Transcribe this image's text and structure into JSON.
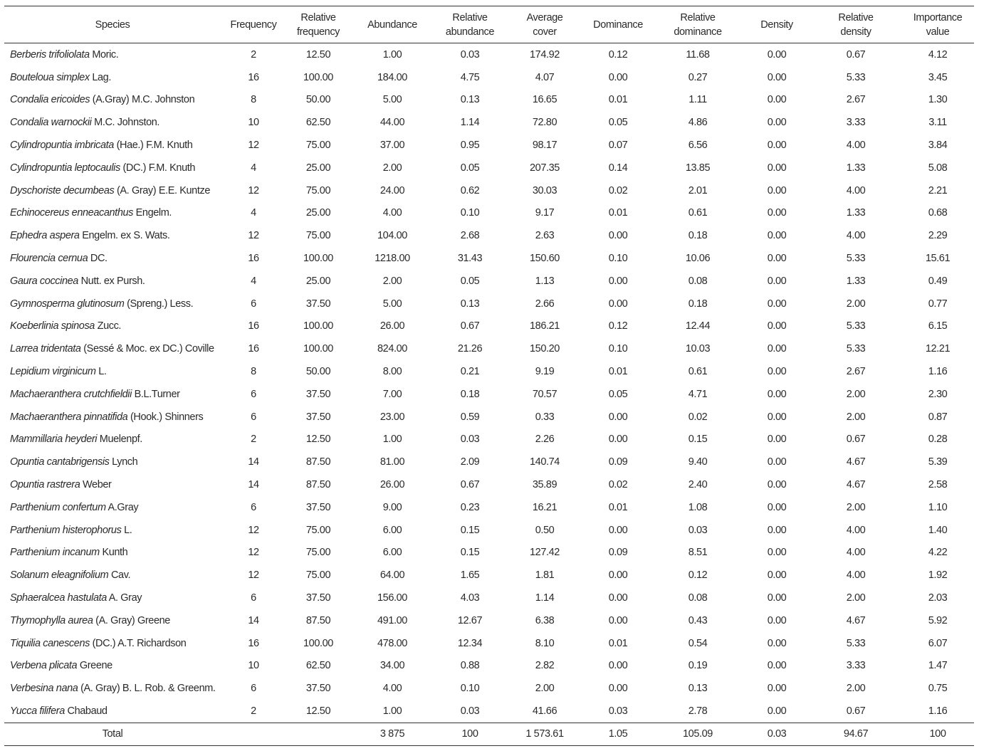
{
  "table": {
    "headers": [
      "Species",
      "Frequency",
      "Relative frequency",
      "Abundance",
      "Relative abundance",
      "Average cover",
      "Dominance",
      "Relative dominance",
      "Density",
      "Relative density",
      "Importance value"
    ],
    "rows": [
      {
        "species": "Berberis trifoliolata",
        "authority": "Moric.",
        "values": [
          "2",
          "12.50",
          "1.00",
          "0.03",
          "174.92",
          "0.12",
          "11.68",
          "0.00",
          "0.67",
          "4.12"
        ]
      },
      {
        "species": "Bouteloua simplex",
        "authority": "Lag.",
        "values": [
          "16",
          "100.00",
          "184.00",
          "4.75",
          "4.07",
          "0.00",
          "0.27",
          "0.00",
          "5.33",
          "3.45"
        ]
      },
      {
        "species": "Condalia ericoides",
        "authority": "(A.Gray) M.C. Johnston",
        "values": [
          "8",
          "50.00",
          "5.00",
          "0.13",
          "16.65",
          "0.01",
          "1.11",
          "0.00",
          "2.67",
          "1.30"
        ]
      },
      {
        "species": "Condalia warnockii",
        "authority": "M.C. Johnston.",
        "values": [
          "10",
          "62.50",
          "44.00",
          "1.14",
          "72.80",
          "0.05",
          "4.86",
          "0.00",
          "3.33",
          "3.11"
        ]
      },
      {
        "species": "Cylindropuntia imbricata",
        "authority": "(Hae.) F.M. Knuth",
        "values": [
          "12",
          "75.00",
          "37.00",
          "0.95",
          "98.17",
          "0.07",
          "6.56",
          "0.00",
          "4.00",
          "3.84"
        ]
      },
      {
        "species": "Cylindropuntia leptocaulis",
        "authority": "(DC.) F.M. Knuth",
        "values": [
          "4",
          "25.00",
          "2.00",
          "0.05",
          "207.35",
          "0.14",
          "13.85",
          "0.00",
          "1.33",
          "5.08"
        ]
      },
      {
        "species": "Dyschoriste decumbeas",
        "authority": "(A. Gray) E.E. Kuntze",
        "values": [
          "12",
          "75.00",
          "24.00",
          "0.62",
          "30.03",
          "0.02",
          "2.01",
          "0.00",
          "4.00",
          "2.21"
        ]
      },
      {
        "species": "Echinocereus enneacanthus",
        "authority": "Engelm.",
        "values": [
          "4",
          "25.00",
          "4.00",
          "0.10",
          "9.17",
          "0.01",
          "0.61",
          "0.00",
          "1.33",
          "0.68"
        ]
      },
      {
        "species": "Ephedra aspera",
        "authority": "Engelm. ex S. Wats.",
        "values": [
          "12",
          "75.00",
          "104.00",
          "2.68",
          "2.63",
          "0.00",
          "0.18",
          "0.00",
          "4.00",
          "2.29"
        ]
      },
      {
        "species": "Flourencia cernua",
        "authority": "DC.",
        "values": [
          "16",
          "100.00",
          "1218.00",
          "31.43",
          "150.60",
          "0.10",
          "10.06",
          "0.00",
          "5.33",
          "15.61"
        ]
      },
      {
        "species": "Gaura coccinea",
        "authority": "Nutt. ex Pursh.",
        "values": [
          "4",
          "25.00",
          "2.00",
          "0.05",
          "1.13",
          "0.00",
          "0.08",
          "0.00",
          "1.33",
          "0.49"
        ]
      },
      {
        "species": "Gymnosperma glutinosum",
        "authority": "(Spreng.) Less.",
        "values": [
          "6",
          "37.50",
          "5.00",
          "0.13",
          "2.66",
          "0.00",
          "0.18",
          "0.00",
          "2.00",
          "0.77"
        ]
      },
      {
        "species": "Koeberlinia spinosa",
        "authority": "Zucc.",
        "values": [
          "16",
          "100.00",
          "26.00",
          "0.67",
          "186.21",
          "0.12",
          "12.44",
          "0.00",
          "5.33",
          "6.15"
        ]
      },
      {
        "species": "Larrea tridentata",
        "authority": "(Sessé & Moc. ex DC.) Coville",
        "values": [
          "16",
          "100.00",
          "824.00",
          "21.26",
          "150.20",
          "0.10",
          "10.03",
          "0.00",
          "5.33",
          "12.21"
        ]
      },
      {
        "species": "Lepidium virginicum",
        "authority": "L.",
        "values": [
          "8",
          "50.00",
          "8.00",
          "0.21",
          "9.19",
          "0.01",
          "0.61",
          "0.00",
          "2.67",
          "1.16"
        ]
      },
      {
        "species": "Machaeranthera crutchfieldii",
        "authority": "B.L.Turner",
        "values": [
          "6",
          "37.50",
          "7.00",
          "0.18",
          "70.57",
          "0.05",
          "4.71",
          "0.00",
          "2.00",
          "2.30"
        ]
      },
      {
        "species": "Machaeranthera pinnatifida",
        "authority": "(Hook.) Shinners",
        "values": [
          "6",
          "37.50",
          "23.00",
          "0.59",
          "0.33",
          "0.00",
          "0.02",
          "0.00",
          "2.00",
          "0.87"
        ]
      },
      {
        "species": "Mammillaria heyderi",
        "authority": "Muelenpf.",
        "values": [
          "2",
          "12.50",
          "1.00",
          "0.03",
          "2.26",
          "0.00",
          "0.15",
          "0.00",
          "0.67",
          "0.28"
        ]
      },
      {
        "species": "Opuntia cantabrigensis",
        "authority": "Lynch",
        "values": [
          "14",
          "87.50",
          "81.00",
          "2.09",
          "140.74",
          "0.09",
          "9.40",
          "0.00",
          "4.67",
          "5.39"
        ]
      },
      {
        "species": "Opuntia rastrera",
        "authority": "Weber",
        "values": [
          "14",
          "87.50",
          "26.00",
          "0.67",
          "35.89",
          "0.02",
          "2.40",
          "0.00",
          "4.67",
          "2.58"
        ]
      },
      {
        "species": "Parthenium confertum",
        "authority": "A.Gray",
        "values": [
          "6",
          "37.50",
          "9.00",
          "0.23",
          "16.21",
          "0.01",
          "1.08",
          "0.00",
          "2.00",
          "1.10"
        ]
      },
      {
        "species": "Parthenium histerophorus",
        "authority": "L.",
        "values": [
          "12",
          "75.00",
          "6.00",
          "0.15",
          "0.50",
          "0.00",
          "0.03",
          "0.00",
          "4.00",
          "1.40"
        ]
      },
      {
        "species": "Parthenium incanum",
        "authority": "Kunth",
        "values": [
          "12",
          "75.00",
          "6.00",
          "0.15",
          "127.42",
          "0.09",
          "8.51",
          "0.00",
          "4.00",
          "4.22"
        ]
      },
      {
        "species": "Solanum eleagnifolium",
        "authority": "Cav.",
        "values": [
          "12",
          "75.00",
          "64.00",
          "1.65",
          "1.81",
          "0.00",
          "0.12",
          "0.00",
          "4.00",
          "1.92"
        ]
      },
      {
        "species": "Sphaeralcea hastulata",
        "authority": "A. Gray",
        "values": [
          "6",
          "37.50",
          "156.00",
          "4.03",
          "1.14",
          "0.00",
          "0.08",
          "0.00",
          "2.00",
          "2.03"
        ]
      },
      {
        "species": "Thymophylla aurea",
        "authority": "(A. Gray) Greene",
        "values": [
          "14",
          "87.50",
          "491.00",
          "12.67",
          "6.38",
          "0.00",
          "0.43",
          "0.00",
          "4.67",
          "5.92"
        ]
      },
      {
        "species": "Tiquilia canescens",
        "authority": "(DC.) A.T. Richardson",
        "values": [
          "16",
          "100.00",
          "478.00",
          "12.34",
          "8.10",
          "0.01",
          "0.54",
          "0.00",
          "5.33",
          "6.07"
        ]
      },
      {
        "species": "Verbena plicata",
        "authority": "Greene",
        "values": [
          "10",
          "62.50",
          "34.00",
          "0.88",
          "2.82",
          "0.00",
          "0.19",
          "0.00",
          "3.33",
          "1.47"
        ]
      },
      {
        "species": "Verbesina nana",
        "authority": "(A. Gray) B. L. Rob. & Greenm.",
        "values": [
          "6",
          "37.50",
          "4.00",
          "0.10",
          "2.00",
          "0.00",
          "0.13",
          "0.00",
          "2.00",
          "0.75"
        ]
      },
      {
        "species": "Yucca filifera",
        "authority": "Chabaud",
        "values": [
          "2",
          "12.50",
          "1.00",
          "0.03",
          "41.66",
          "0.03",
          "2.78",
          "0.00",
          "0.67",
          "1.16"
        ]
      }
    ],
    "total": {
      "label": "Total",
      "values": [
        "3 875",
        "100",
        "1 573.61",
        "1.05",
        "105.09",
        "0.03",
        "94.67",
        "100"
      ]
    }
  }
}
